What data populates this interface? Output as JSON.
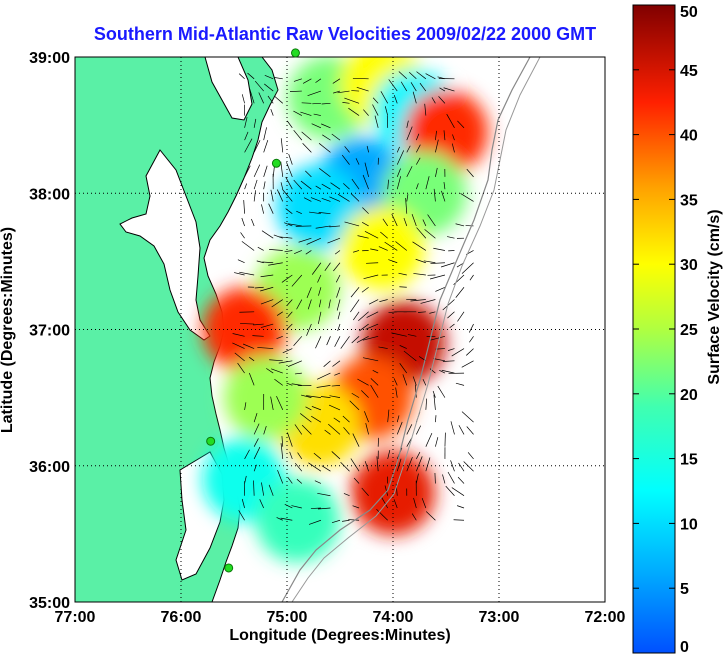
{
  "chart_data": {
    "type": "heatmap",
    "title": "Southern Mid-Atlantic Raw Velocities 2009/02/22 2000 GMT",
    "xlabel": "Longitude (Degrees:Minutes)",
    "ylabel": "Latitude (Degrees:Minutes)",
    "x_ticks": [
      {
        "value": -77,
        "label": "77:00"
      },
      {
        "value": -76,
        "label": "76:00"
      },
      {
        "value": -75,
        "label": "75:00"
      },
      {
        "value": -74,
        "label": "74:00"
      },
      {
        "value": -73,
        "label": "73:00"
      },
      {
        "value": -72,
        "label": "72:00"
      }
    ],
    "y_ticks": [
      {
        "value": 35,
        "label": "35:00"
      },
      {
        "value": 36,
        "label": "36:00"
      },
      {
        "value": 37,
        "label": "37:00"
      },
      {
        "value": 38,
        "label": "38:00"
      },
      {
        "value": 39,
        "label": "39:00"
      }
    ],
    "xlim": [
      -77,
      -72
    ],
    "ylim": [
      35,
      39
    ],
    "grid": true,
    "colorbar": {
      "label": "Surface Velocity (cm/s)",
      "range": [
        0,
        50
      ],
      "ticks": [
        0,
        5,
        10,
        15,
        20,
        25,
        30,
        35,
        40,
        45,
        50
      ],
      "colormap": "jet"
    },
    "land_color": "#5af0a6",
    "vector_color": "#000000",
    "site_marker_color": "#22dd22",
    "sites": [
      {
        "lon": -74.92,
        "lat": 39.03
      },
      {
        "lon": -75.1,
        "lat": 38.22
      },
      {
        "lon": -75.72,
        "lat": 36.18
      },
      {
        "lon": -75.55,
        "lat": 35.25
      }
    ],
    "speed_field": [
      {
        "lon": -74.6,
        "lat": 38.7,
        "speed": 22
      },
      {
        "lon": -74.1,
        "lat": 38.8,
        "speed": 30
      },
      {
        "lon": -73.8,
        "lat": 38.6,
        "speed": 12
      },
      {
        "lon": -73.5,
        "lat": 38.45,
        "speed": 42
      },
      {
        "lon": -74.3,
        "lat": 38.1,
        "speed": 6
      },
      {
        "lon": -74.7,
        "lat": 37.9,
        "speed": 10
      },
      {
        "lon": -73.7,
        "lat": 38.0,
        "speed": 22
      },
      {
        "lon": -74.1,
        "lat": 37.6,
        "speed": 30
      },
      {
        "lon": -74.9,
        "lat": 37.3,
        "speed": 24
      },
      {
        "lon": -73.9,
        "lat": 36.9,
        "speed": 46
      },
      {
        "lon": -74.2,
        "lat": 36.5,
        "speed": 40
      },
      {
        "lon": -74.7,
        "lat": 36.3,
        "speed": 32
      },
      {
        "lon": -75.4,
        "lat": 37.0,
        "speed": 42
      },
      {
        "lon": -75.2,
        "lat": 36.5,
        "speed": 24
      },
      {
        "lon": -75.4,
        "lat": 35.9,
        "speed": 14
      },
      {
        "lon": -74.9,
        "lat": 35.6,
        "speed": 18
      },
      {
        "lon": -74.0,
        "lat": 35.8,
        "speed": 44
      }
    ]
  }
}
